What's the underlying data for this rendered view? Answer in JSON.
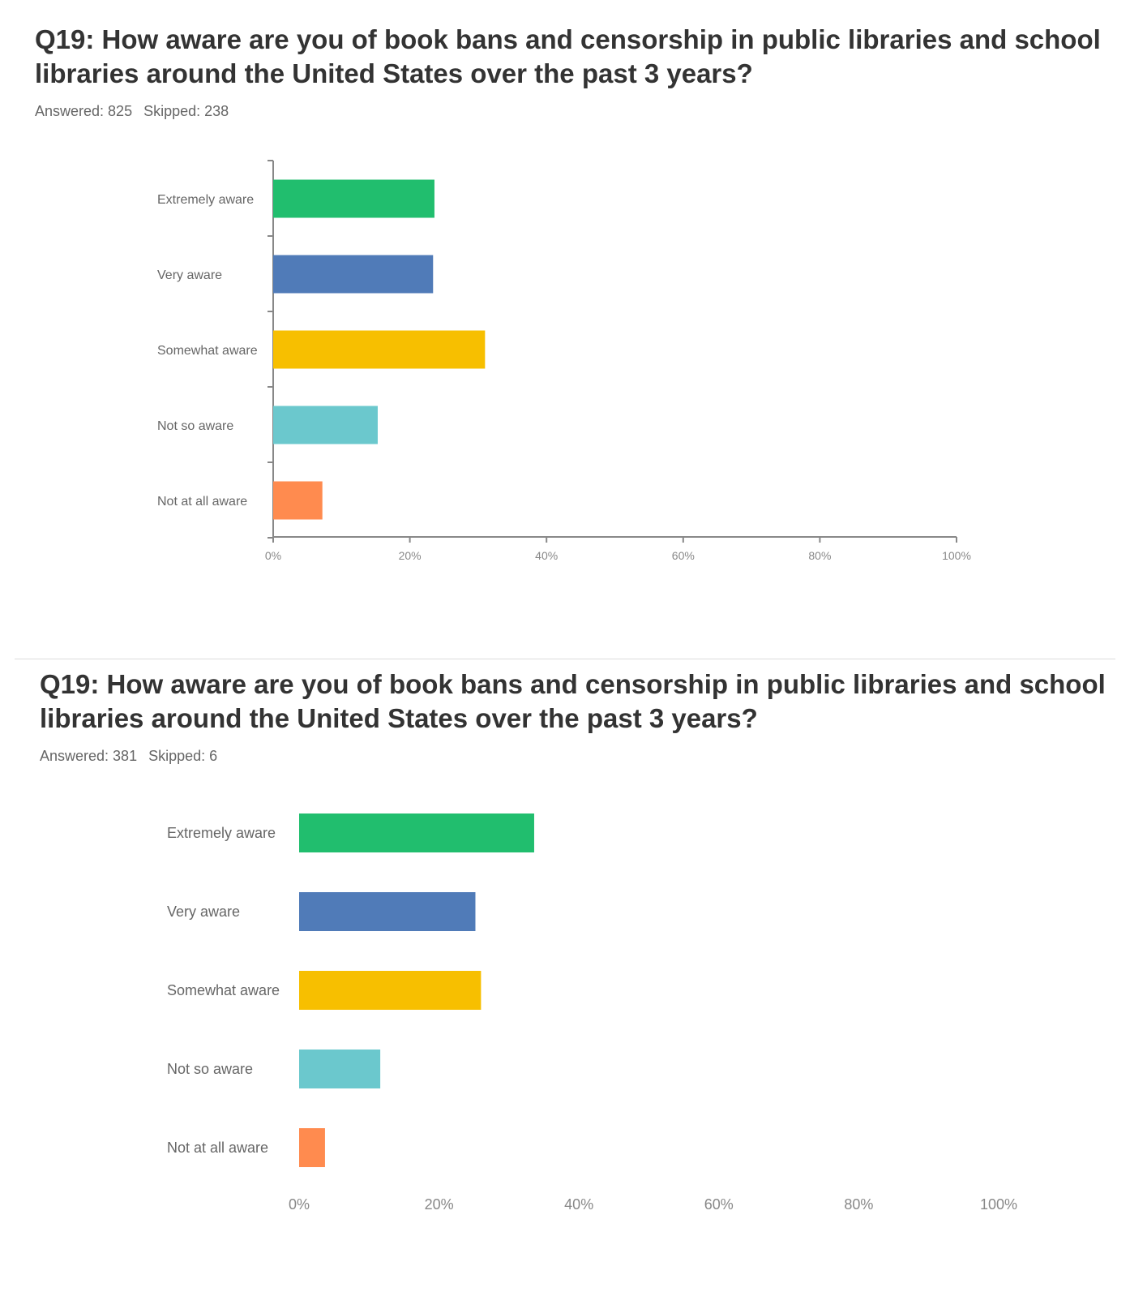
{
  "chart_data": [
    {
      "type": "bar",
      "orientation": "horizontal",
      "title": "Q19: How aware are you of book bans and censorship in public libraries and school libraries around the United States over the past 3 years?",
      "answered_label": "Answered: 825",
      "skipped_label": "Skipped: 238",
      "categories": [
        "Extremely aware",
        "Very aware",
        "Somewhat aware",
        "Not so aware",
        "Not at all aware"
      ],
      "values": [
        23.6,
        23.4,
        31.0,
        15.3,
        7.2
      ],
      "colors": [
        "#21BE6E",
        "#507BB8",
        "#F7BF00",
        "#6BC8CD",
        "#FF8B4F"
      ],
      "xlim": [
        0,
        100
      ],
      "xticks": [
        "0%",
        "20%",
        "40%",
        "60%",
        "80%",
        "100%"
      ],
      "grid": false,
      "axis_lines": true
    },
    {
      "type": "bar",
      "orientation": "horizontal",
      "title": "Q19: How aware are you of book bans and censorship in public libraries and school libraries around the United States over the past 3 years?",
      "answered_label": "Answered: 381",
      "skipped_label": "Skipped: 6",
      "categories": [
        "Extremely aware",
        "Very aware",
        "Somewhat aware",
        "Not so aware",
        "Not at all aware"
      ],
      "values": [
        33.6,
        25.2,
        26.0,
        11.6,
        3.7
      ],
      "colors": [
        "#21BE6E",
        "#507BB8",
        "#F7BF00",
        "#6BC8CD",
        "#FF8B4F"
      ],
      "xlim": [
        0,
        100
      ],
      "xticks": [
        "0%",
        "20%",
        "40%",
        "60%",
        "80%",
        "100%"
      ],
      "grid": false,
      "axis_lines": false
    }
  ]
}
